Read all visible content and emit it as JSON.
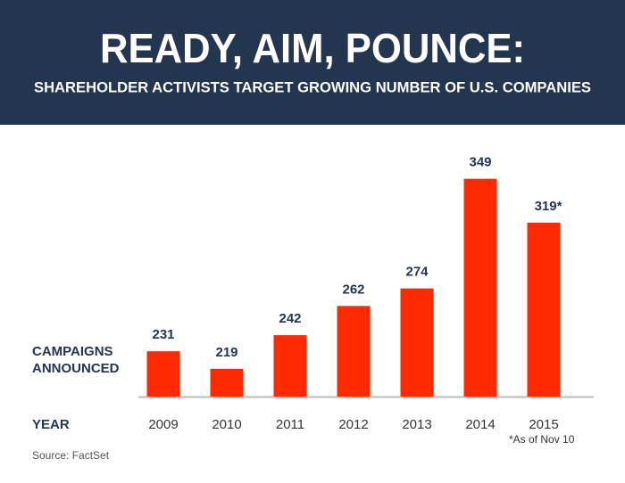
{
  "chart_data": {
    "type": "bar",
    "title": "READY, AIM, POUNCE:",
    "subtitle": "SHAREHOLDER ACTIVISTS TARGET GROWING NUMBER OF U.S. COMPANIES",
    "y_label": [
      "CAMPAIGNS",
      "ANNOUNCED"
    ],
    "x_label": "YEAR",
    "categories": [
      "2009",
      "2010",
      "2011",
      "2012",
      "2013",
      "2014",
      "2015"
    ],
    "values": [
      231,
      219,
      242,
      262,
      274,
      349,
      319
    ],
    "value_labels": [
      "231",
      "219",
      "242",
      "262",
      "274",
      "349",
      "319*"
    ],
    "color": "#ff2a00",
    "ylim": [
      200,
      350
    ],
    "note": "*As of Nov 10",
    "source": "Source: FactSet"
  }
}
